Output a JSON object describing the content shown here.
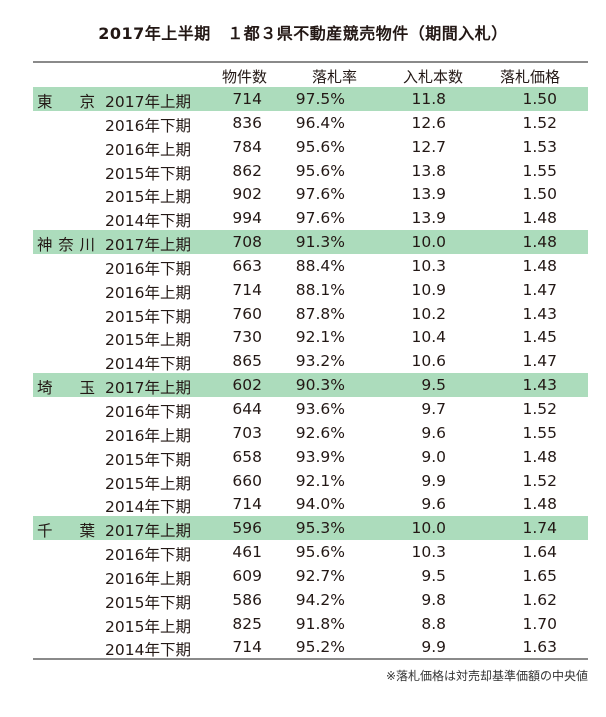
{
  "title": "2017年上半期　１都３県不動産競売物件（期間入札）",
  "headers": [
    "物件数",
    "落札率",
    "入札本数",
    "落札価格"
  ],
  "highlight_color": "#acdcbc",
  "groups": [
    {
      "prefecture": "東　京",
      "rows": [
        {
          "period": "2017年上期",
          "count": "714",
          "rate": "97.5%",
          "bids": "11.8",
          "price": "1.50"
        },
        {
          "period": "2016年下期",
          "count": "836",
          "rate": "96.4%",
          "bids": "12.6",
          "price": "1.52"
        },
        {
          "period": "2016年上期",
          "count": "784",
          "rate": "95.6%",
          "bids": "12.7",
          "price": "1.53"
        },
        {
          "period": "2015年下期",
          "count": "862",
          "rate": "95.6%",
          "bids": "13.8",
          "price": "1.55"
        },
        {
          "period": "2015年上期",
          "count": "902",
          "rate": "97.6%",
          "bids": "13.9",
          "price": "1.50"
        },
        {
          "period": "2014年下期",
          "count": "994",
          "rate": "97.6%",
          "bids": "13.9",
          "price": "1.48"
        }
      ]
    },
    {
      "prefecture": "神奈川",
      "rows": [
        {
          "period": "2017年上期",
          "count": "708",
          "rate": "91.3%",
          "bids": "10.0",
          "price": "1.48"
        },
        {
          "period": "2016年下期",
          "count": "663",
          "rate": "88.4%",
          "bids": "10.3",
          "price": "1.48"
        },
        {
          "period": "2016年上期",
          "count": "714",
          "rate": "88.1%",
          "bids": "10.9",
          "price": "1.47"
        },
        {
          "period": "2015年下期",
          "count": "760",
          "rate": "87.8%",
          "bids": "10.2",
          "price": "1.43"
        },
        {
          "period": "2015年上期",
          "count": "730",
          "rate": "92.1%",
          "bids": "10.4",
          "price": "1.45"
        },
        {
          "period": "2014年下期",
          "count": "865",
          "rate": "93.2%",
          "bids": "10.6",
          "price": "1.47"
        }
      ]
    },
    {
      "prefecture": "埼　玉",
      "rows": [
        {
          "period": "2017年上期",
          "count": "602",
          "rate": "90.3%",
          "bids": "9.5",
          "price": "1.43"
        },
        {
          "period": "2016年下期",
          "count": "644",
          "rate": "93.6%",
          "bids": "9.7",
          "price": "1.52"
        },
        {
          "period": "2016年上期",
          "count": "703",
          "rate": "92.6%",
          "bids": "9.6",
          "price": "1.55"
        },
        {
          "period": "2015年下期",
          "count": "658",
          "rate": "93.9%",
          "bids": "9.0",
          "price": "1.48"
        },
        {
          "period": "2015年上期",
          "count": "660",
          "rate": "92.1%",
          "bids": "9.9",
          "price": "1.52"
        },
        {
          "period": "2014年下期",
          "count": "714",
          "rate": "94.0%",
          "bids": "9.6",
          "price": "1.48"
        }
      ]
    },
    {
      "prefecture": "千　葉",
      "rows": [
        {
          "period": "2017年上期",
          "count": "596",
          "rate": "95.3%",
          "bids": "10.0",
          "price": "1.74"
        },
        {
          "period": "2016年下期",
          "count": "461",
          "rate": "95.6%",
          "bids": "10.3",
          "price": "1.64"
        },
        {
          "period": "2016年上期",
          "count": "609",
          "rate": "92.7%",
          "bids": "9.5",
          "price": "1.65"
        },
        {
          "period": "2015年下期",
          "count": "586",
          "rate": "94.2%",
          "bids": "9.8",
          "price": "1.62"
        },
        {
          "period": "2015年上期",
          "count": "825",
          "rate": "91.8%",
          "bids": "8.8",
          "price": "1.70"
        },
        {
          "period": "2014年下期",
          "count": "714",
          "rate": "95.2%",
          "bids": "9.9",
          "price": "1.63"
        }
      ]
    }
  ],
  "footnote": "※落札価格は対売却基準価額の中央値"
}
